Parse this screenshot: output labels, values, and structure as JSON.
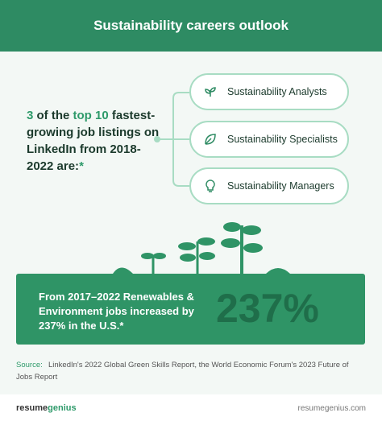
{
  "header": {
    "title": "Sustainability careers outlook"
  },
  "intro": {
    "count": "3",
    "of_the": " of the ",
    "top": "top 10",
    "rest": " fastest-growing job listings on LinkedIn from 2018-2022 are:",
    "mark": "*"
  },
  "jobs": [
    "Sustainability Analysts",
    "Sustainability Specialists",
    "Sustainability Managers"
  ],
  "stat": {
    "text": "From 2017–2022 Renewables & Environment jobs increased by 237% in the U.S.*",
    "figure": "237%"
  },
  "source": {
    "label": "Source:",
    "text": "LinkedIn's 2022 Global Green Skills Report, the World Economic Forum's 2023 Future of Jobs Report"
  },
  "footer": {
    "brand_a": "resume",
    "brand_b": "genius",
    "url": "resumegenius.com"
  }
}
